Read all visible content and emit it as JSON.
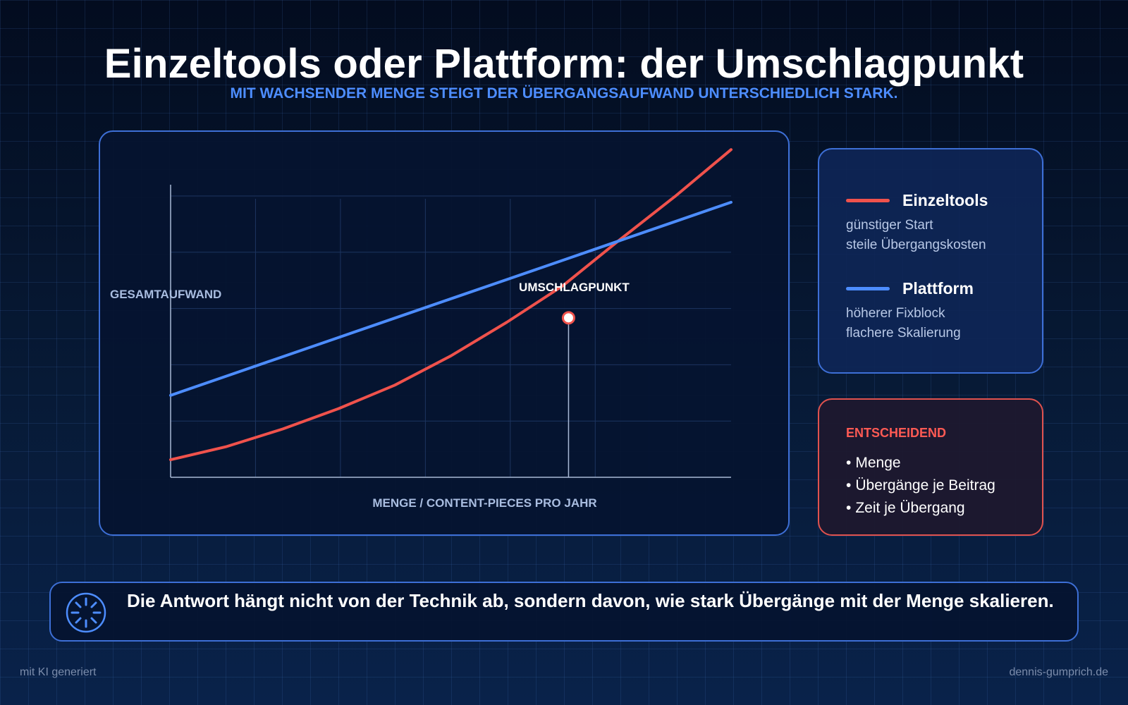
{
  "header": {
    "title": "Einzeltools oder Plattform: der Umschlagpunkt",
    "subtitle": "MIT WACHSENDER MENGE STEIGT DER ÜBERGANGSAUFWAND UNTERSCHIEDLICH STARK."
  },
  "chart_data": {
    "type": "line",
    "title": "",
    "xlabel": "MENGE / CONTENT-PIECES PRO JAHR",
    "ylabel": "GESAMTAUFWAND",
    "x": [
      0,
      1,
      2,
      3,
      4,
      5,
      6,
      7,
      8,
      9,
      10
    ],
    "xlim": [
      0,
      10
    ],
    "ylim": [
      0,
      10
    ],
    "grid": true,
    "legend": "right",
    "series": [
      {
        "name": "Einzeltools",
        "color": "#f0524c",
        "values": [
          0.6,
          1.05,
          1.65,
          2.35,
          3.15,
          4.15,
          5.3,
          6.55,
          8.1,
          9.6,
          11.2
        ]
      },
      {
        "name": "Plattform",
        "color": "#4d8dff",
        "values": [
          2.8,
          3.46,
          4.12,
          4.78,
          5.44,
          6.1,
          6.76,
          7.42,
          8.08,
          8.74,
          9.4
        ]
      }
    ],
    "annotations": [
      {
        "text": "UMSCHLAGPUNKT",
        "x": 7.1,
        "y": 5.45
      }
    ]
  },
  "legend": {
    "entries": [
      {
        "name": "Einzeltools",
        "color": "#f0524c",
        "desc_line1": "günstiger Start",
        "desc_line2": "steile Übergangskosten"
      },
      {
        "name": "Plattform",
        "color": "#4d8dff",
        "desc_line1": "höherer Fixblock",
        "desc_line2": "flachere Skalierung"
      }
    ]
  },
  "note": {
    "title": "ENTSCHEIDEND",
    "items": [
      "Menge",
      "Übergänge je Beitrag",
      "Zeit je Übergang"
    ]
  },
  "answer": {
    "icon": "loader-icon",
    "text": "Die Antwort hängt nicht von der Technik ab, sondern davon, wie stark Übergänge mit der Menge skalieren."
  },
  "footer": {
    "left": "mit KI generiert",
    "right": "dennis-gumprich.de"
  },
  "colors": {
    "accent": "#4d8dff",
    "warning": "#f0524c",
    "background": "#071a36"
  }
}
